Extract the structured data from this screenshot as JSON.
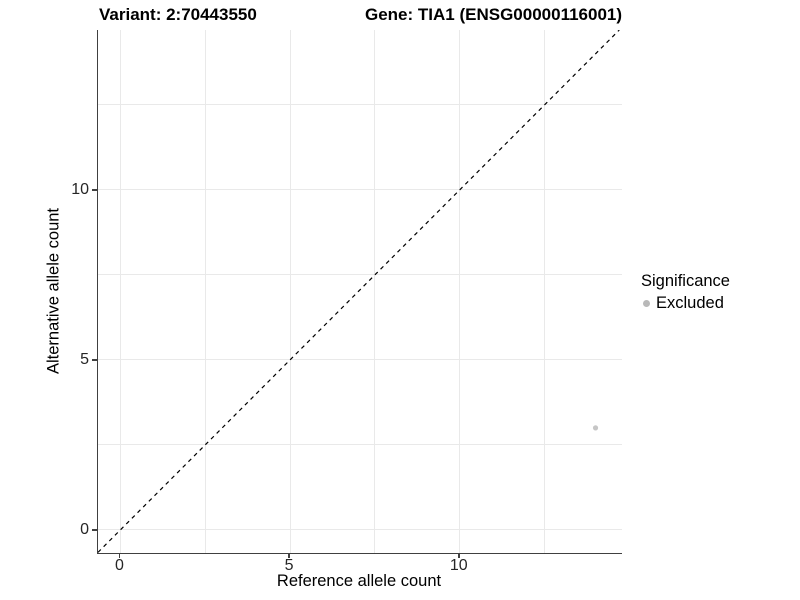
{
  "chart_data": {
    "type": "scatter",
    "title_left": "Variant: 2:70443550",
    "title_right": "Gene: TIA1 (ENSG00000116001)",
    "xlabel": "Reference allele count",
    "ylabel": "Alternative allele count",
    "xlim": [
      -0.66,
      14.78
    ],
    "ylim": [
      -0.68,
      14.7
    ],
    "xticks": [
      0,
      5,
      10
    ],
    "yticks": [
      0,
      5,
      10
    ],
    "grid_x": [
      0,
      2.5,
      5,
      7.5,
      10,
      12.5
    ],
    "grid_y": [
      0,
      2.5,
      5,
      7.5,
      10,
      12.5
    ],
    "grid": true,
    "identity_line": {
      "equation": "y = x",
      "style": "dashed",
      "color": "#000000"
    },
    "series": [
      {
        "name": "Excluded",
        "color": "#c6c6c6",
        "points": [
          {
            "x": 14,
            "y": 3
          }
        ]
      }
    ],
    "legend": {
      "title": "Significance",
      "position": "right",
      "items": [
        {
          "label": "Excluded",
          "color": "#b9b9b9"
        }
      ]
    }
  },
  "colors": {
    "background": "#ffffff",
    "axis_line": "#404040",
    "gridline": "#e9e9e9",
    "tick_text": "#262626",
    "title_text": "#000000"
  }
}
